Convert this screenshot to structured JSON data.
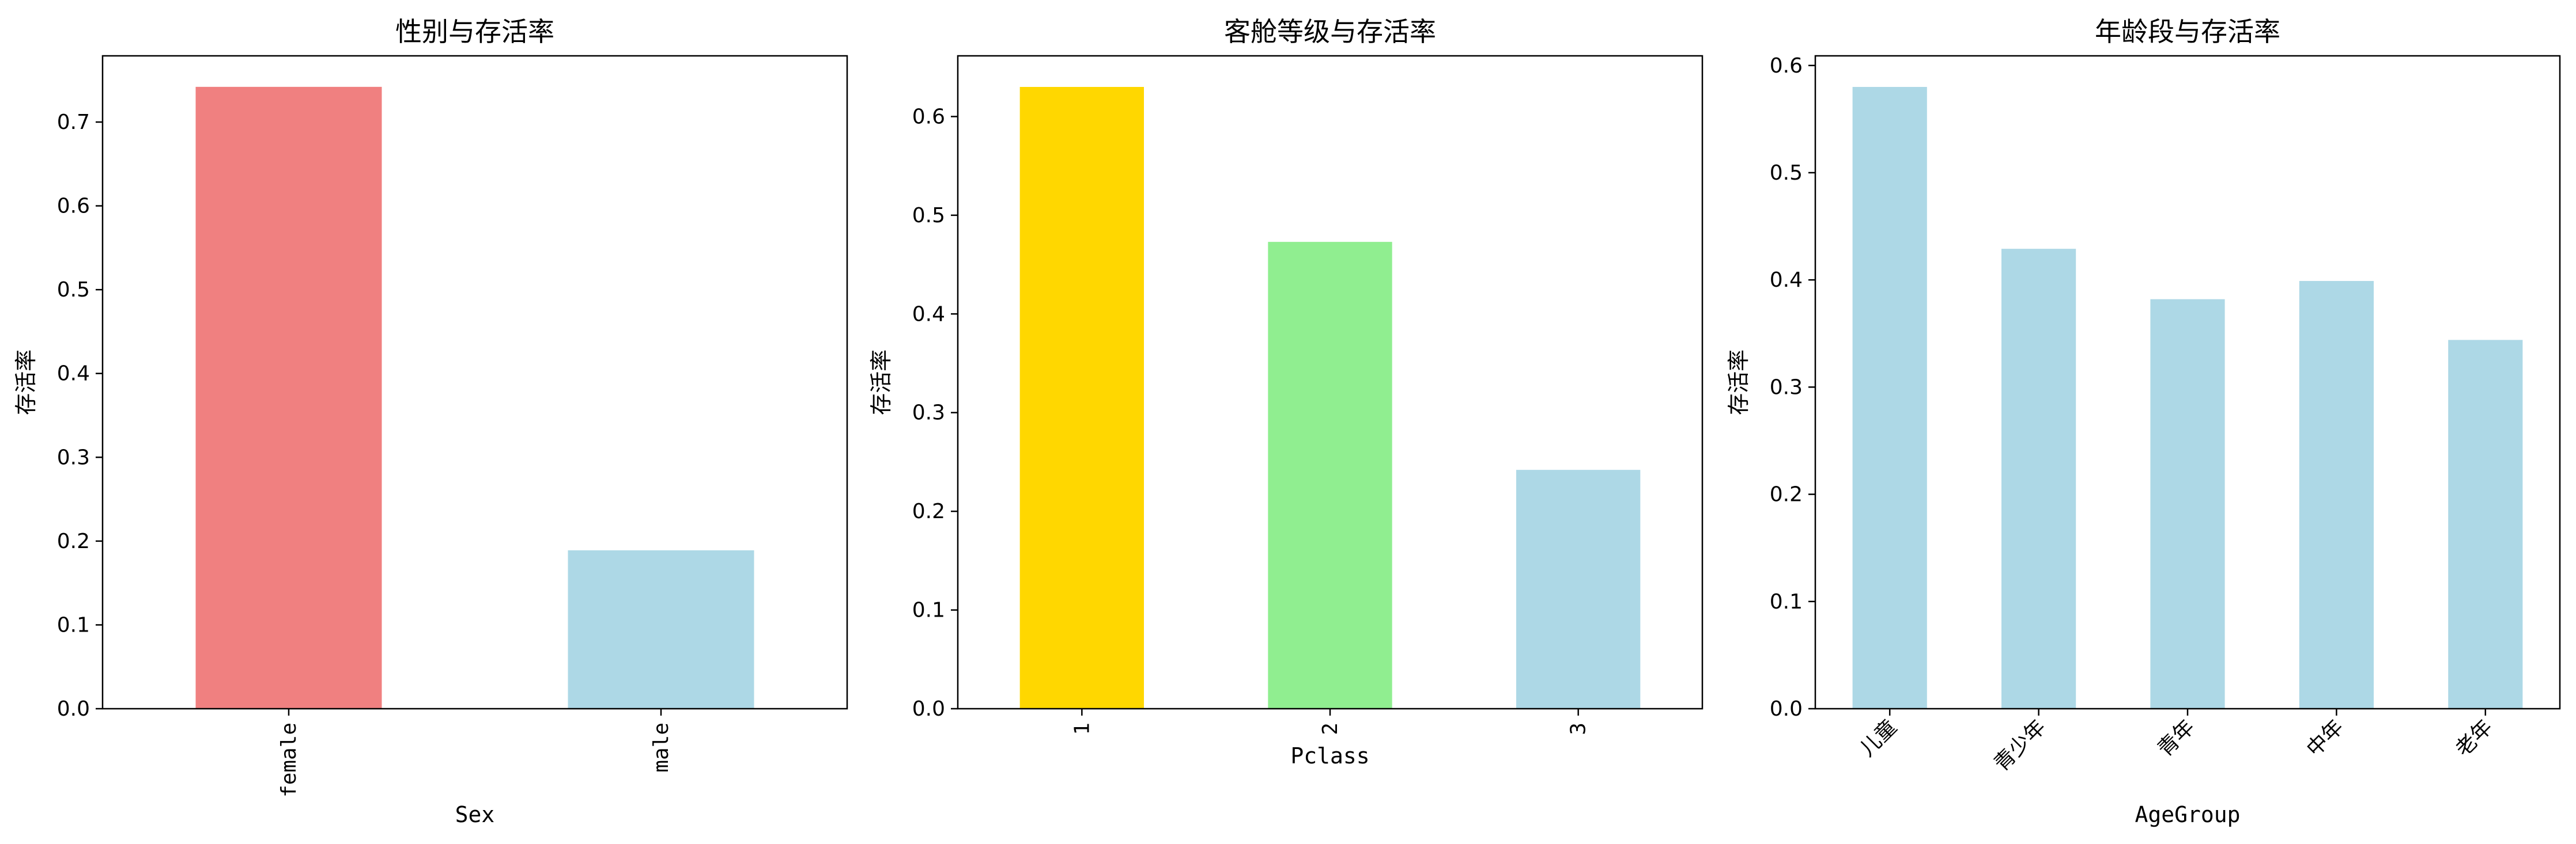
{
  "chart_data": [
    {
      "type": "bar",
      "title": "性别与存活率",
      "xlabel": "Sex",
      "ylabel": "存活率",
      "categories": [
        "female",
        "male"
      ],
      "values": [
        0.742,
        0.189
      ],
      "colors": [
        "#f08080",
        "#add8e6"
      ],
      "ylim": [
        0,
        0.779
      ],
      "yticks": [
        0.0,
        0.1,
        0.2,
        0.3,
        0.4,
        0.5,
        0.6,
        0.7
      ],
      "xtick_rotation": "vertical",
      "grid": false,
      "legend": "none"
    },
    {
      "type": "bar",
      "title": "客舱等级与存活率",
      "xlabel": "Pclass",
      "ylabel": "存活率",
      "categories": [
        "1",
        "2",
        "3"
      ],
      "values": [
        0.63,
        0.473,
        0.242
      ],
      "colors": [
        "#ffd700",
        "#90ee90",
        "#add8e6"
      ],
      "ylim": [
        0,
        0.6615
      ],
      "yticks": [
        0.0,
        0.1,
        0.2,
        0.3,
        0.4,
        0.5,
        0.6
      ],
      "xtick_rotation": "vertical",
      "grid": false,
      "legend": "none"
    },
    {
      "type": "bar",
      "title": "年龄段与存活率",
      "xlabel": "AgeGroup",
      "ylabel": "存活率",
      "categories": [
        "儿童",
        "青少年",
        "青年",
        "中年",
        "老年"
      ],
      "values": [
        0.58,
        0.429,
        0.382,
        0.399,
        0.344
      ],
      "colors": [
        "#add8e6",
        "#add8e6",
        "#add8e6",
        "#add8e6",
        "#add8e6"
      ],
      "ylim": [
        0,
        0.609
      ],
      "yticks": [
        0.0,
        0.1,
        0.2,
        0.3,
        0.4,
        0.5,
        0.6
      ],
      "xtick_rotation": "45",
      "grid": false,
      "legend": "none"
    }
  ]
}
